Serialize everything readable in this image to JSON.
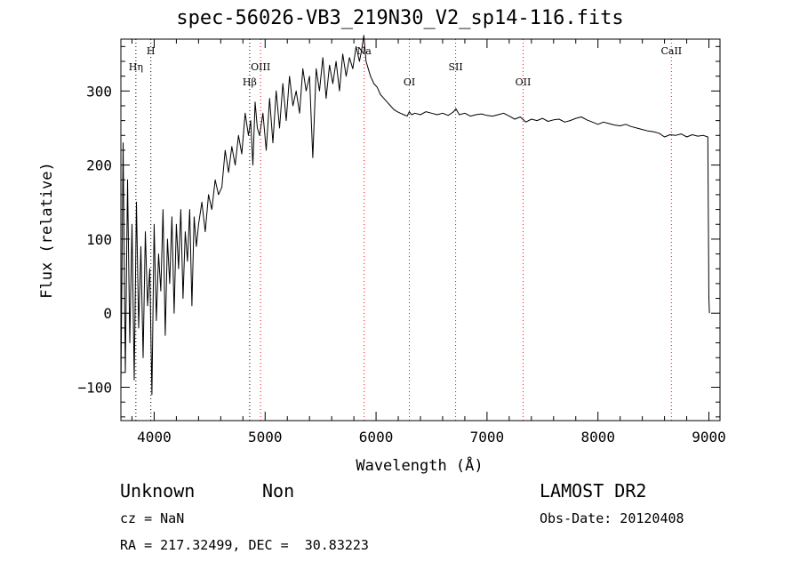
{
  "chart_data": {
    "type": "line",
    "title": "spec-56026-VB3_219N30_V2_sp14-116.fits",
    "xlabel": "Wavelength (Å)",
    "ylabel": "Flux (relative)",
    "xlim": [
      3700,
      9100
    ],
    "ylim": [
      -145,
      370
    ],
    "xticks": [
      4000,
      5000,
      6000,
      7000,
      8000,
      9000
    ],
    "yticks": [
      -100,
      0,
      100,
      200,
      300
    ],
    "xtick_labels": [
      "4000",
      "5000",
      "6000",
      "7000",
      "8000",
      "9000"
    ],
    "ytick_labels": [
      "−100",
      "0",
      "100",
      "200",
      "300"
    ],
    "grid": false,
    "series": [
      {
        "color": "#000000",
        "x": [
          3700,
          3720,
          3740,
          3760,
          3780,
          3800,
          3820,
          3840,
          3860,
          3880,
          3900,
          3920,
          3940,
          3960,
          3980,
          4000,
          4020,
          4040,
          4060,
          4080,
          4100,
          4120,
          4140,
          4160,
          4180,
          4200,
          4220,
          4240,
          4260,
          4280,
          4300,
          4320,
          4340,
          4360,
          4380,
          4400,
          4430,
          4460,
          4490,
          4520,
          4550,
          4580,
          4610,
          4640,
          4670,
          4700,
          4730,
          4760,
          4790,
          4820,
          4850,
          4870,
          4890,
          4910,
          4930,
          4950,
          4980,
          5010,
          5040,
          5070,
          5100,
          5130,
          5160,
          5190,
          5220,
          5250,
          5280,
          5310,
          5340,
          5370,
          5400,
          5430,
          5460,
          5490,
          5520,
          5550,
          5580,
          5610,
          5640,
          5670,
          5700,
          5730,
          5760,
          5790,
          5820,
          5850,
          5870,
          5890,
          5910,
          5930,
          5950,
          5980,
          6010,
          6040,
          6070,
          6100,
          6130,
          6160,
          6190,
          6220,
          6250,
          6280,
          6300,
          6320,
          6350,
          6400,
          6450,
          6500,
          6550,
          6600,
          6650,
          6700,
          6720,
          6750,
          6800,
          6850,
          6900,
          6950,
          7000,
          7050,
          7100,
          7150,
          7200,
          7250,
          7300,
          7350,
          7400,
          7450,
          7500,
          7550,
          7600,
          7650,
          7700,
          7750,
          7800,
          7850,
          7900,
          7950,
          8000,
          8050,
          8100,
          8150,
          8200,
          8250,
          8300,
          8350,
          8400,
          8450,
          8500,
          8550,
          8600,
          8650,
          8700,
          8750,
          8800,
          8850,
          8900,
          8950,
          8990,
          9000,
          9005
        ],
        "y": [
          -100,
          230,
          -80,
          180,
          -40,
          120,
          -90,
          150,
          -20,
          90,
          -60,
          110,
          10,
          60,
          -110,
          120,
          -10,
          80,
          30,
          140,
          -30,
          100,
          40,
          130,
          0,
          120,
          60,
          140,
          20,
          110,
          70,
          140,
          10,
          130,
          90,
          120,
          150,
          110,
          160,
          140,
          180,
          160,
          170,
          220,
          190,
          225,
          200,
          240,
          215,
          270,
          240,
          260,
          200,
          285,
          250,
          240,
          270,
          220,
          290,
          230,
          300,
          250,
          310,
          260,
          320,
          280,
          300,
          270,
          330,
          300,
          320,
          210,
          330,
          300,
          345,
          290,
          335,
          310,
          340,
          300,
          350,
          320,
          345,
          330,
          360,
          340,
          355,
          375,
          340,
          330,
          320,
          310,
          305,
          295,
          290,
          285,
          280,
          275,
          272,
          270,
          268,
          266,
          272,
          268,
          270,
          268,
          272,
          270,
          268,
          270,
          267,
          272,
          276,
          268,
          270,
          266,
          268,
          269,
          267,
          266,
          268,
          270,
          266,
          262,
          265,
          258,
          262,
          260,
          263,
          259,
          261,
          262,
          258,
          260,
          263,
          265,
          261,
          258,
          255,
          258,
          256,
          254,
          253,
          255,
          252,
          250,
          248,
          246,
          245,
          243,
          238,
          241,
          240,
          242,
          238,
          241,
          239,
          240,
          238,
          20,
          0
        ]
      }
    ],
    "lines": [
      {
        "label": "Hη",
        "wavelength": 3835,
        "label_row": "upper"
      },
      {
        "label": "H",
        "wavelength": 3970,
        "label_row": "top"
      },
      {
        "label": "Hβ",
        "wavelength": 4861,
        "label_row": "middle"
      },
      {
        "label": "OIII",
        "wavelength": 4959,
        "label_row": "upper"
      },
      {
        "label": "Na",
        "wavelength": 5893,
        "label_row": "top"
      },
      {
        "label": "OI",
        "wavelength": 6300,
        "label_row": "middle"
      },
      {
        "label": "SII",
        "wavelength": 6717,
        "label_row": "upper"
      },
      {
        "label": "OII",
        "wavelength": 7325,
        "label_row": "middle"
      },
      {
        "label": "CaII",
        "wavelength": 8662,
        "label_row": "top"
      }
    ],
    "line_colors": {
      "absorption": "#000000",
      "emission": "#ff0000"
    }
  },
  "footer": {
    "class_label": "Unknown",
    "subclass_label": "Non",
    "survey": "LAMOST DR2",
    "cz": "cz = NaN",
    "obs_date": "Obs-Date: 20120408",
    "coords": "RA = 217.32499, DEC =  30.83223"
  }
}
